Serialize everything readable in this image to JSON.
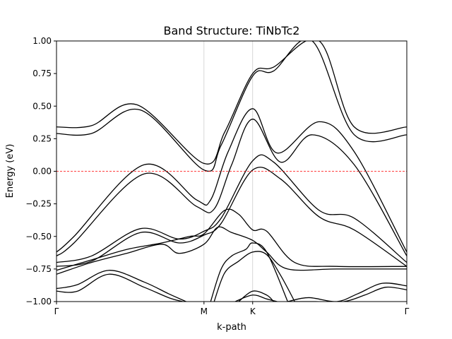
{
  "chart_data": {
    "type": "line",
    "title": "Band Structure: TiNbTc2",
    "xlabel": "k-path",
    "ylabel": "Energy (eV)",
    "ylim": [
      -1.0,
      1.0
    ],
    "xlim": [
      0,
      1
    ],
    "y_ticks": [
      -1.0,
      -0.75,
      -0.5,
      -0.25,
      0.0,
      0.25,
      0.5,
      0.75,
      1.0
    ],
    "y_tick_labels": [
      "−1.00",
      "−0.75",
      "−0.50",
      "−0.25",
      "0.00",
      "0.25",
      "0.50",
      "0.75",
      "1.00"
    ],
    "k_points": [
      {
        "label": "Γ",
        "x": 0.0
      },
      {
        "label": "M",
        "x": 0.421
      },
      {
        "label": "K",
        "x": 0.56
      },
      {
        "label": "Γ",
        "x": 1.0
      }
    ],
    "fermi_level": 0.0,
    "fermi_color": "#ff0000",
    "line_color": "#000000",
    "series": [
      {
        "x": [
          0,
          0.1,
          0.23,
          0.421,
          0.48,
          0.56,
          0.62,
          0.75,
          0.85,
          1.0
        ],
        "y": [
          0.34,
          0.35,
          0.51,
          0.06,
          0.3,
          0.75,
          0.8,
          1.0,
          0.34,
          0.34
        ]
      },
      {
        "x": [
          0,
          0.1,
          0.24,
          0.421,
          0.47,
          0.56,
          0.62,
          0.73,
          0.85,
          1.0
        ],
        "y": [
          0.29,
          0.29,
          0.47,
          0.01,
          0.2,
          0.73,
          0.77,
          1.0,
          0.28,
          0.28
        ]
      },
      {
        "x": [
          0,
          0.05,
          0.25,
          0.4,
          0.44,
          0.49,
          0.56,
          0.63,
          0.75,
          0.85,
          1.0
        ],
        "y": [
          -0.62,
          -0.5,
          0.05,
          -0.22,
          -0.22,
          0.15,
          0.48,
          0.14,
          0.38,
          0.15,
          -0.62
        ]
      },
      {
        "x": [
          0,
          0.05,
          0.25,
          0.4,
          0.45,
          0.5,
          0.56,
          0.64,
          0.73,
          0.85,
          1.0
        ],
        "y": [
          -0.65,
          -0.55,
          -0.02,
          -0.27,
          -0.29,
          0.05,
          0.4,
          0.07,
          0.28,
          0.05,
          -0.65
        ]
      },
      {
        "x": [
          0,
          0.1,
          0.24,
          0.35,
          0.421,
          0.47,
          0.56,
          0.62,
          0.75,
          0.85,
          1.0
        ],
        "y": [
          -0.7,
          -0.65,
          -0.44,
          -0.52,
          -0.46,
          -0.36,
          0.08,
          0.07,
          -0.3,
          -0.36,
          -0.7
        ]
      },
      {
        "x": [
          0,
          0.1,
          0.24,
          0.35,
          0.421,
          0.47,
          0.56,
          0.64,
          0.75,
          0.85,
          1.0
        ],
        "y": [
          -0.73,
          -0.69,
          -0.47,
          -0.55,
          -0.49,
          -0.4,
          0.01,
          -0.06,
          -0.35,
          -0.45,
          -0.73
        ]
      },
      {
        "x": [
          0,
          0.1,
          0.2,
          0.3,
          0.38,
          0.421,
          0.48,
          0.52,
          0.56,
          0.6,
          0.68,
          0.8,
          1.0
        ],
        "y": [
          -0.76,
          -0.68,
          -0.6,
          -0.55,
          -0.5,
          -0.48,
          -0.3,
          -0.33,
          -0.45,
          -0.46,
          -0.7,
          -0.73,
          -0.73
        ]
      },
      {
        "x": [
          0,
          0.1,
          0.2,
          0.3,
          0.35,
          0.421,
          0.46,
          0.5,
          0.56,
          0.6,
          0.66,
          0.8,
          1.0
        ],
        "y": [
          -0.79,
          -0.7,
          -0.63,
          -0.56,
          -0.63,
          -0.56,
          -0.43,
          -0.47,
          -0.53,
          -0.62,
          -0.75,
          -0.75,
          -0.75
        ]
      },
      {
        "x": [
          0,
          0.06,
          0.15,
          0.25,
          0.32,
          0.37
        ],
        "y": [
          -0.9,
          -0.87,
          -0.76,
          -0.85,
          -0.94,
          -1.0
        ]
      },
      {
        "x": [
          0,
          0.06,
          0.15,
          0.25,
          0.32,
          0.36
        ],
        "y": [
          -0.92,
          -0.92,
          -0.79,
          -0.89,
          -0.97,
          -1.0
        ]
      },
      {
        "x": [
          0.44,
          0.47,
          0.5,
          0.54,
          0.56,
          0.6,
          0.66
        ],
        "y": [
          -1.0,
          -0.75,
          -0.65,
          -0.6,
          -0.55,
          -0.62,
          -1.0
        ]
      },
      {
        "x": [
          0.45,
          0.48,
          0.52,
          0.56,
          0.6,
          0.64,
          0.68
        ],
        "y": [
          -1.0,
          -0.78,
          -0.69,
          -0.62,
          -0.64,
          -0.8,
          -1.0
        ]
      },
      {
        "x": [
          0.52,
          0.56,
          0.6,
          0.62
        ],
        "y": [
          -1.0,
          -0.92,
          -0.95,
          -1.0
        ]
      },
      {
        "x": [
          0.51,
          0.56,
          0.6,
          0.63
        ],
        "y": [
          -1.0,
          -0.95,
          -0.98,
          -1.0
        ]
      },
      {
        "x": [
          0.66,
          0.72,
          0.8,
          0.86,
          0.93,
          1.0
        ],
        "y": [
          -1.0,
          -0.97,
          -1.0,
          -0.94,
          -0.86,
          -0.88
        ]
      },
      {
        "x": [
          0.68,
          0.74,
          0.82,
          0.88,
          0.94,
          1.0
        ],
        "y": [
          -1.0,
          -1.0,
          -1.0,
          -0.95,
          -0.89,
          -0.91
        ]
      }
    ]
  }
}
